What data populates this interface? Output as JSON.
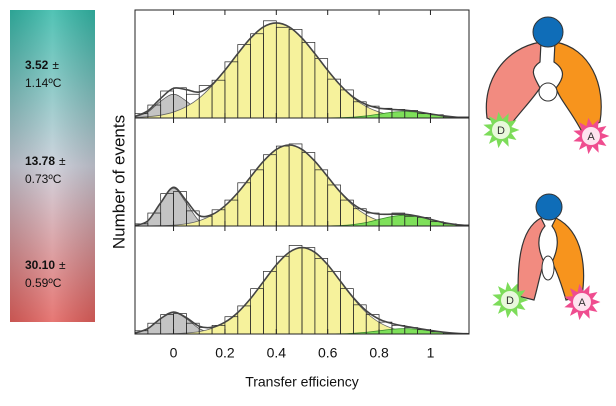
{
  "chart_data": [
    {
      "type": "histogram",
      "annotation": {
        "value": "3.52",
        "sign": "±",
        "error": "1.14ºC"
      },
      "xlim": [
        -0.15,
        1.15
      ],
      "ylim": [
        0,
        100
      ],
      "xticks": [
        0,
        0.2,
        0.4,
        0.6,
        0.8,
        1
      ],
      "bins": [
        -0.15,
        -0.1,
        -0.05,
        0,
        0.05,
        0.1,
        0.15,
        0.2,
        0.25,
        0.3,
        0.35,
        0.4,
        0.45,
        0.5,
        0.55,
        0.6,
        0.65,
        0.7,
        0.75,
        0.8,
        0.85,
        0.9,
        0.95,
        1,
        1.05,
        1.1,
        1.15
      ],
      "values": [
        4,
        12,
        25,
        28,
        22,
        30,
        35,
        52,
        68,
        78,
        90,
        84,
        82,
        70,
        55,
        36,
        26,
        15,
        11,
        9,
        8,
        7,
        4,
        3,
        1,
        1
      ],
      "x": [
        -0.15,
        -0.1,
        -0.05,
        0,
        0.05,
        0.1,
        0.15,
        0.2,
        0.25,
        0.3,
        0.35,
        0.4,
        0.45,
        0.5,
        0.55,
        0.6,
        0.65,
        0.7,
        0.75,
        0.8,
        0.85,
        0.9,
        0.95,
        1,
        1.05,
        1.1,
        1.15
      ],
      "components": [
        {
          "color": "#c4c4c4",
          "values": [
            1,
            5.5,
            15.6,
            22,
            15.6,
            5.5,
            1,
            0.1,
            0,
            0,
            0,
            0,
            0,
            0,
            0,
            0,
            0,
            0,
            0,
            0,
            0,
            0,
            0,
            0,
            0,
            0,
            0
          ]
        },
        {
          "color": "#f6f29c",
          "values": [
            0.5,
            1.2,
            2.6,
            5.5,
            10.6,
            18.5,
            29.9,
            44.1,
            59.6,
            74,
            84.3,
            88,
            84.3,
            74,
            59.6,
            44.1,
            29.9,
            18.5,
            10.6,
            5.5,
            2.6,
            1.2,
            0.5,
            0.2,
            0.1,
            0,
            0
          ]
        },
        {
          "color": "#7ee05a",
          "values": [
            0,
            0,
            0,
            0,
            0,
            0,
            0,
            0,
            0,
            0,
            0,
            0,
            0,
            0,
            0,
            0.1,
            0.3,
            0.8,
            1.9,
            3.6,
            5.3,
            6,
            5.3,
            3.6,
            1.9,
            0.8,
            0.3
          ]
        }
      ]
    },
    {
      "type": "histogram",
      "annotation": {
        "value": "13.78",
        "sign": "±",
        "error": "0.73ºC"
      },
      "ylabel": "Number of events",
      "xlim": [
        -0.15,
        1.15
      ],
      "ylim": [
        0,
        100
      ],
      "xticks": [
        0,
        0.2,
        0.4,
        0.6,
        0.8,
        1
      ],
      "bins": [
        -0.15,
        -0.1,
        -0.05,
        0,
        0.05,
        0.1,
        0.15,
        0.2,
        0.25,
        0.3,
        0.35,
        0.4,
        0.45,
        0.5,
        0.55,
        0.6,
        0.65,
        0.7,
        0.75,
        0.8,
        0.85,
        0.9,
        0.95,
        1,
        1.05,
        1.1,
        1.15
      ],
      "values": [
        2,
        12,
        30,
        32,
        14,
        9,
        15,
        24,
        40,
        52,
        66,
        74,
        76,
        68,
        52,
        38,
        24,
        16,
        12,
        11,
        12,
        9,
        8,
        4,
        2,
        1
      ],
      "x": [
        -0.15,
        -0.1,
        -0.05,
        0,
        0.05,
        0.1,
        0.15,
        0.2,
        0.25,
        0.3,
        0.35,
        0.4,
        0.45,
        0.5,
        0.55,
        0.6,
        0.65,
        0.7,
        0.75,
        0.8,
        0.85,
        0.9,
        0.95,
        1,
        1.05,
        1.1,
        1.15
      ],
      "components": [
        {
          "color": "#c4c4c4",
          "values": [
            0.4,
            4.7,
            21.2,
            35,
            21.2,
            4.7,
            0.4,
            0,
            0,
            0,
            0,
            0,
            0,
            0,
            0,
            0,
            0,
            0,
            0,
            0,
            0,
            0,
            0,
            0,
            0,
            0,
            0
          ]
        },
        {
          "color": "#f6f29c",
          "values": [
            0,
            0.1,
            0.3,
            0.8,
            2.1,
            4.9,
            10.2,
            18.7,
            30.8,
            45.5,
            60,
            70.9,
            75,
            70.9,
            60,
            45.5,
            30.8,
            18.7,
            10.2,
            4.9,
            2.1,
            0.8,
            0.3,
            0.1,
            0,
            0,
            0
          ]
        },
        {
          "color": "#7ee05a",
          "values": [
            0,
            0,
            0,
            0,
            0,
            0,
            0,
            0,
            0,
            0,
            0,
            0,
            0,
            0,
            0,
            0.1,
            0.4,
            1.4,
            3.2,
            6.1,
            8.8,
            10,
            8.8,
            6.1,
            3.2,
            1.4,
            0.4
          ]
        }
      ]
    },
    {
      "type": "histogram",
      "annotation": {
        "value": "30.10",
        "sign": "±",
        "error": "0.59ºC"
      },
      "xlabel": "Transfer efficiency",
      "xlim": [
        -0.15,
        1.15
      ],
      "ylim": [
        0,
        100
      ],
      "xticks": [
        0,
        0.2,
        0.4,
        0.6,
        0.8,
        1
      ],
      "bins": [
        -0.15,
        -0.1,
        -0.05,
        0,
        0.05,
        0.1,
        0.15,
        0.2,
        0.25,
        0.3,
        0.35,
        0.4,
        0.45,
        0.5,
        0.55,
        0.6,
        0.65,
        0.7,
        0.75,
        0.8,
        0.85,
        0.9,
        0.95,
        1,
        1.05,
        1.1,
        1.15
      ],
      "values": [
        3,
        10,
        18,
        19,
        10,
        6,
        8,
        16,
        26,
        42,
        58,
        72,
        82,
        80,
        70,
        58,
        42,
        27,
        18,
        11,
        8,
        6,
        4,
        2,
        1,
        0
      ],
      "x": [
        -0.15,
        -0.1,
        -0.05,
        0,
        0.05,
        0.1,
        0.15,
        0.2,
        0.25,
        0.3,
        0.35,
        0.4,
        0.45,
        0.5,
        0.55,
        0.6,
        0.65,
        0.7,
        0.75,
        0.8,
        0.85,
        0.9,
        0.95,
        1,
        1.05,
        1.1,
        1.15
      ],
      "components": [
        {
          "color": "#c4c4c4",
          "values": [
            0.9,
            5,
            14.2,
            20,
            14.2,
            5,
            0.9,
            0.1,
            0,
            0,
            0,
            0,
            0,
            0,
            0,
            0,
            0,
            0,
            0,
            0,
            0,
            0,
            0,
            0,
            0,
            0,
            0
          ]
        },
        {
          "color": "#f6f29c",
          "values": [
            0,
            0,
            0.1,
            0.3,
            0.9,
            2.2,
            5.3,
            10.8,
            19.9,
            32.9,
            48.5,
            64,
            75.6,
            80,
            75.6,
            64,
            48.5,
            32.9,
            19.9,
            10.8,
            5.3,
            2.2,
            0.9,
            0.3,
            0.1,
            0,
            0
          ]
        },
        {
          "color": "#7ee05a",
          "values": [
            0,
            0,
            0,
            0,
            0,
            0,
            0,
            0,
            0,
            0,
            0,
            0,
            0,
            0,
            0,
            0.1,
            0.2,
            0.7,
            1.6,
            3,
            4.4,
            5,
            4.4,
            3,
            1.6,
            0.7,
            0.2
          ]
        }
      ]
    }
  ],
  "diagrams": [
    {
      "donor": "D",
      "acceptor": "A"
    },
    {
      "donor": "D",
      "acceptor": "A"
    }
  ]
}
